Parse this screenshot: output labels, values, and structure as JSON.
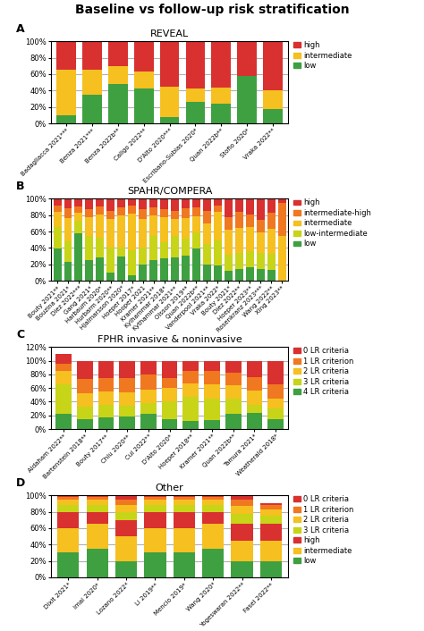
{
  "title": "Baseline vs follow-up risk stratification",
  "chart_data": [
    {
      "type": "bar",
      "stacked": true,
      "title": "REVEAL",
      "annotations": [
        "A"
      ],
      "categories": [
        "Badagliacca 2021***",
        "Benza 2021***",
        "Benza 2022b**",
        "Caligo 2022**",
        "D'Alto 2020***",
        "Escribano-Subias 2020*",
        "Quan 2022b**",
        "Stofio 2020*",
        "Vraka 2022**"
      ],
      "series": [
        {
          "name": "low",
          "color": "#3EA040",
          "values": [
            10,
            35,
            48,
            43,
            8,
            26,
            24,
            58,
            18
          ]
        },
        {
          "name": "intermediate",
          "color": "#F5C020",
          "values": [
            55,
            30,
            22,
            20,
            37,
            17,
            20,
            0,
            22
          ]
        },
        {
          "name": "high",
          "color": "#D93030",
          "values": [
            35,
            35,
            30,
            37,
            55,
            57,
            56,
            42,
            60
          ]
        }
      ],
      "ylim": [
        0,
        100
      ],
      "yticks": [
        {
          "value": 0,
          "label": "0%"
        },
        {
          "value": 20,
          "label": "20%"
        },
        {
          "value": 40,
          "label": "40%"
        },
        {
          "value": 60,
          "label": "60%"
        },
        {
          "value": 80,
          "label": "80%"
        },
        {
          "value": 100,
          "label": "100%"
        }
      ],
      "grid": true,
      "legend": "upper left"
    },
    {
      "type": "bar",
      "stacked": true,
      "title": "SPAHR/COMPERA",
      "annotations": [
        "B"
      ],
      "categories": [
        "Bouty 2021**",
        "Bouzina 2021*",
        "Diez 2022***",
        "Gang 2021*",
        "Harbaum 2020*",
        "Hurbarm 2020**",
        "Hjalmarsson 2020*",
        "Hoeper 2017*",
        "Hooper 2021",
        "Kramer 2021**",
        "Kylhammar 2018*",
        "Kythammar 2021**",
        "Olsson 2019**",
        "Quan 2022b**",
        "Vanderpool 2021**",
        "Vraka 2022*",
        "Bouty 2021*",
        "Diez 2022**",
        "Hoeper 2023**",
        "Rosenkranz 2023***",
        "Wang 2022**",
        "Xing 2023**"
      ],
      "series": [
        {
          "name": "low",
          "color": "#3EA040",
          "values": [
            39,
            23,
            58,
            25,
            28,
            10,
            30,
            7,
            20,
            25,
            27,
            28,
            31,
            39,
            20,
            19,
            12,
            14,
            16,
            14,
            13,
            0
          ]
        },
        {
          "name": "low-intermediate",
          "color": "#C8D418",
          "values": [
            27,
            25,
            15,
            30,
            25,
            30,
            10,
            30,
            20,
            30,
            20,
            27,
            20,
            20,
            25,
            30,
            20,
            20,
            20,
            20,
            20,
            0
          ]
        },
        {
          "name": "intermediate",
          "color": "#F5C020",
          "values": [
            18,
            28,
            10,
            22,
            28,
            35,
            40,
            45,
            35,
            25,
            30,
            20,
            25,
            20,
            25,
            35,
            30,
            30,
            30,
            25,
            30,
            55
          ]
        },
        {
          "name": "intermediate-high",
          "color": "#F07820",
          "values": [
            8,
            12,
            8,
            10,
            10,
            10,
            10,
            10,
            12,
            10,
            10,
            10,
            12,
            10,
            15,
            8,
            15,
            20,
            15,
            15,
            20,
            40
          ]
        },
        {
          "name": "high",
          "color": "#D93030",
          "values": [
            8,
            12,
            9,
            13,
            9,
            15,
            10,
            8,
            13,
            10,
            13,
            15,
            12,
            11,
            15,
            8,
            23,
            16,
            19,
            26,
            17,
            5
          ]
        }
      ],
      "ylim": [
        0,
        100
      ],
      "yticks": [
        {
          "value": 0,
          "label": "0%"
        },
        {
          "value": 20,
          "label": "20%"
        },
        {
          "value": 40,
          "label": "40%"
        },
        {
          "value": 60,
          "label": "60%"
        },
        {
          "value": 80,
          "label": "80%"
        },
        {
          "value": 100,
          "label": "100%"
        }
      ],
      "grid": true,
      "legend": "upper left"
    },
    {
      "type": "bar",
      "stacked": true,
      "title": "FPHR invasive & noninvasive",
      "annotations": [
        "C"
      ],
      "categories": [
        "Aldaham 2022**",
        "Bartenstein 2018**",
        "Bouty 2017**",
        "Chiu 2020**",
        "Cul 2022**",
        "D'Alto 2020*",
        "Hoeper 2018**",
        "Kramer 2021**",
        "Quan 2022b**",
        "Tamura 2021*",
        "Weatherald 2018*"
      ],
      "series": [
        {
          "name": "4 LR criteria",
          "color": "#3EA040",
          "values": [
            22,
            14,
            17,
            18,
            22,
            14,
            12,
            13,
            22,
            24,
            15
          ]
        },
        {
          "name": "3 LR criteria",
          "color": "#C8D418",
          "values": [
            43,
            19,
            18,
            16,
            16,
            26,
            35,
            32,
            22,
            12,
            15
          ]
        },
        {
          "name": "2 LR criteria",
          "color": "#F5C020",
          "values": [
            20,
            20,
            20,
            20,
            20,
            20,
            20,
            20,
            20,
            20,
            15
          ]
        },
        {
          "name": "1 LR criterion",
          "color": "#F07820",
          "values": [
            10,
            20,
            20,
            20,
            22,
            15,
            18,
            20,
            18,
            20,
            20
          ]
        },
        {
          "name": "0 LR criteria",
          "color": "#D93030",
          "values": [
            15,
            27,
            25,
            26,
            20,
            25,
            15,
            15,
            18,
            24,
            35
          ]
        }
      ],
      "ylim": [
        0,
        120
      ],
      "yticks": [
        {
          "value": 0,
          "label": "0%"
        },
        {
          "value": 20,
          "label": "20%"
        },
        {
          "value": 40,
          "label": "40%"
        },
        {
          "value": 60,
          "label": "60%"
        },
        {
          "value": 80,
          "label": "80%"
        },
        {
          "value": 100,
          "label": "100%"
        },
        {
          "value": 120,
          "label": "120%"
        }
      ],
      "grid": true,
      "legend": "upper left"
    },
    {
      "type": "bar",
      "stacked": true,
      "title": "Other",
      "annotations": [
        "D"
      ],
      "categories": [
        "Dixit 2021*",
        "Imai 2020*",
        "Lozano 2022*",
        "Li 2019**",
        "Mencio 2019*",
        "Wang 2020*",
        "Yogeswaran 2022**",
        "Fasel 2022**"
      ],
      "series": [
        {
          "name": "low",
          "color": "#3EA040",
          "values": [
            30,
            35,
            20,
            30,
            30,
            35,
            20,
            20
          ]
        },
        {
          "name": "intermediate",
          "color": "#F5C020",
          "values": [
            30,
            30,
            30,
            30,
            30,
            30,
            25,
            25
          ]
        },
        {
          "name": "high",
          "color": "#D93030",
          "values": [
            20,
            15,
            20,
            20,
            20,
            15,
            20,
            20
          ]
        },
        {
          "name": "3 LR criteria",
          "color": "#C8D418",
          "values": [
            8,
            8,
            10,
            8,
            8,
            8,
            12,
            10
          ]
        },
        {
          "name": "2 LR criteria",
          "color": "#F5C020",
          "values": [
            7,
            7,
            8,
            7,
            7,
            7,
            10,
            8
          ]
        },
        {
          "name": "1 LR criterion",
          "color": "#F07820",
          "values": [
            3,
            3,
            7,
            3,
            3,
            3,
            8,
            5
          ]
        },
        {
          "name": "0 LR criteria",
          "color": "#D93030",
          "values": [
            2,
            2,
            5,
            2,
            2,
            2,
            5,
            2
          ]
        }
      ],
      "ylim": [
        0,
        100
      ],
      "yticks": [
        {
          "value": 0,
          "label": "0%"
        },
        {
          "value": 20,
          "label": "20%"
        },
        {
          "value": 40,
          "label": "40%"
        },
        {
          "value": 60,
          "label": "60%"
        },
        {
          "value": 80,
          "label": "80%"
        },
        {
          "value": 100,
          "label": "100%"
        }
      ],
      "grid": true,
      "legend": "upper left"
    }
  ]
}
